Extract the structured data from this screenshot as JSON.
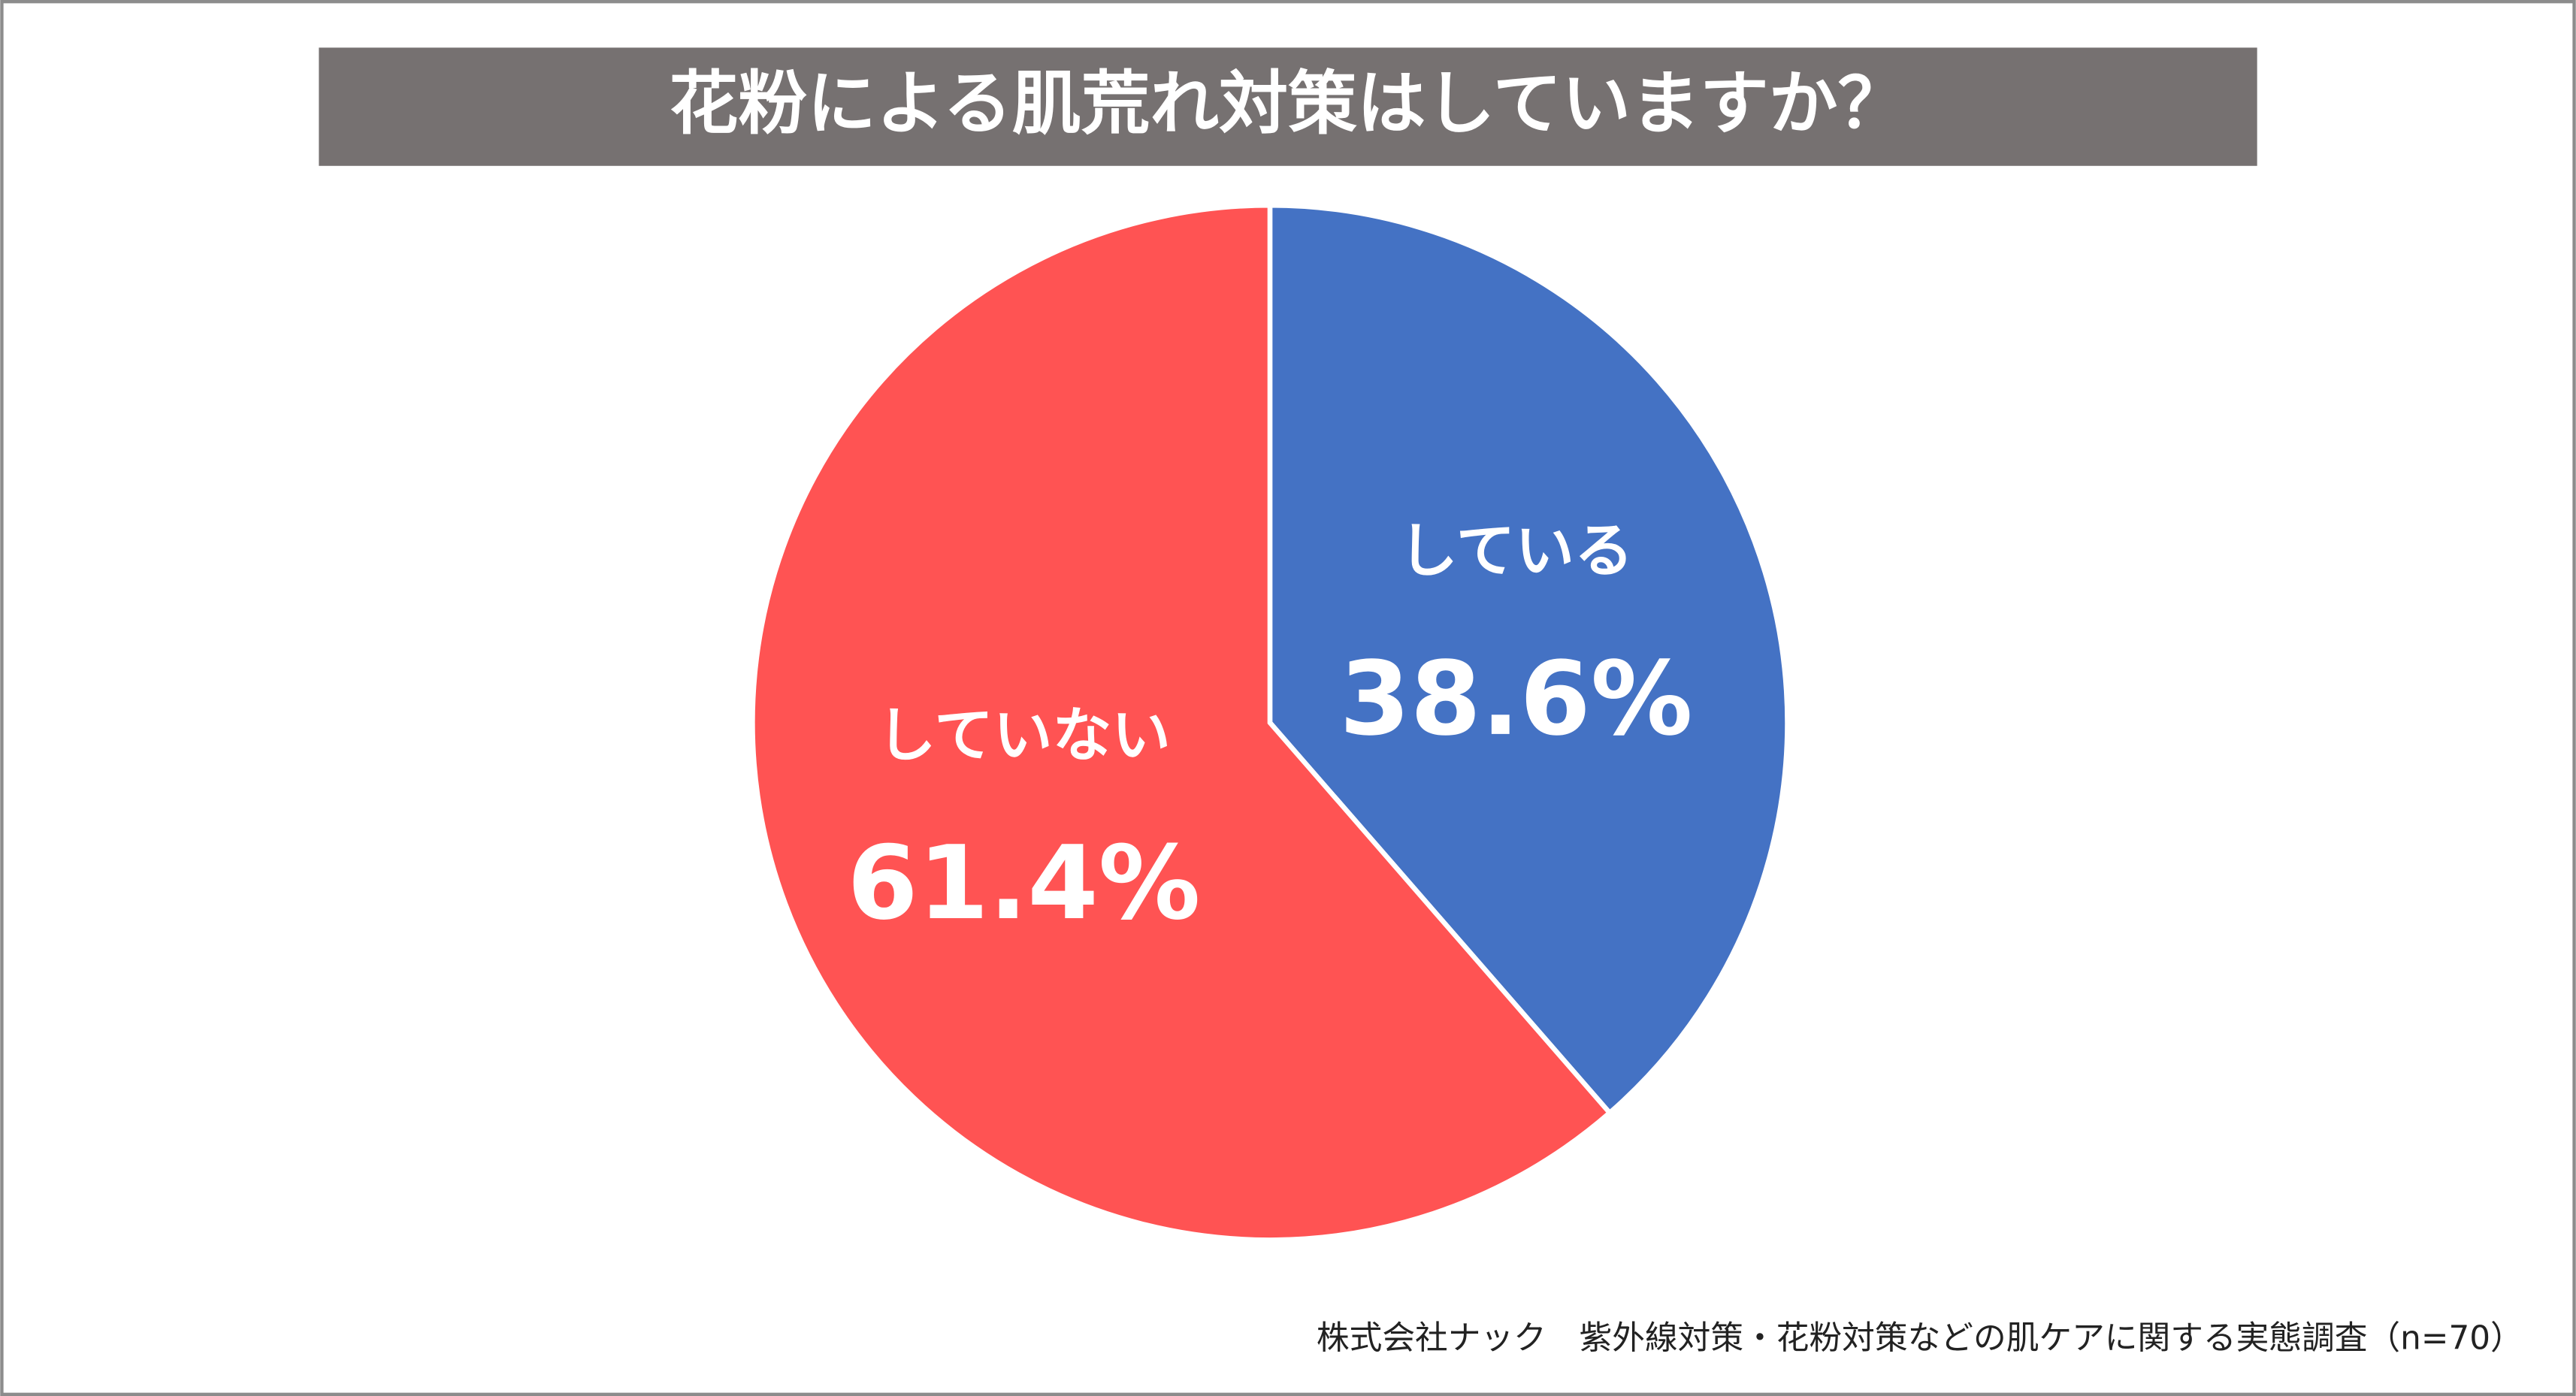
{
  "chart_data": {
    "type": "pie",
    "title": "花粉による肌荒れ対策はしていますか？",
    "categories": [
      "している",
      "していない"
    ],
    "values": [
      38.6,
      61.4
    ],
    "value_labels": [
      "38.6%",
      "61.4%"
    ],
    "colors": [
      "#4472c4",
      "#ff5353"
    ],
    "source": "株式会社ナック　紫外線対策・花粉対策などの肌ケアに関する実態調査（n=70）"
  }
}
